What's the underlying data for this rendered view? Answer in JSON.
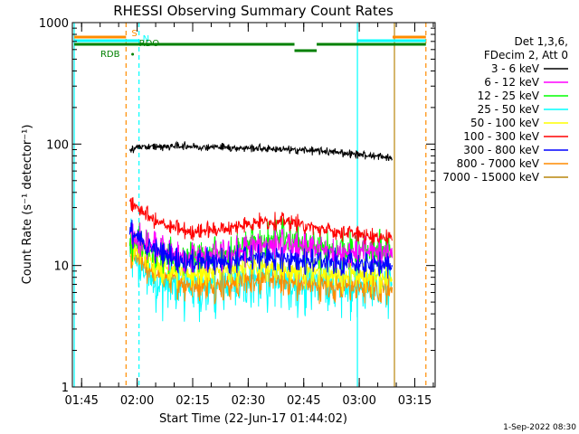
{
  "chart_data": {
    "type": "line",
    "title": "RHESSI Observing Summary Count Rates",
    "xlabel": "Start Time (22-Jun-17 01:44:02)",
    "ylabel": "Count Rate (s⁻¹ detector⁻¹)",
    "y_scale": "log",
    "ylim": [
      1,
      1000
    ],
    "xlim_minutes_after_0144": [
      -1.5,
      96.5
    ],
    "x_ticks": [
      {
        "t": 1,
        "label": "01:45"
      },
      {
        "t": 16,
        "label": "02:00"
      },
      {
        "t": 31,
        "label": "02:15"
      },
      {
        "t": 46,
        "label": "02:30"
      },
      {
        "t": 61,
        "label": "02:45"
      },
      {
        "t": 76,
        "label": "03:00"
      },
      {
        "t": 91,
        "label": "03:15"
      }
    ],
    "y_ticks": [
      {
        "v": 1,
        "label": "1"
      },
      {
        "v": 10,
        "label": "10"
      },
      {
        "v": 100,
        "label": "100"
      },
      {
        "v": 1000,
        "label": "1000"
      }
    ],
    "legend": {
      "position": "right",
      "header": [
        "Det 1,3,6,",
        "FDecim 2, Att 0"
      ],
      "entries": [
        {
          "label": "3 - 6 keV",
          "color": "#000000"
        },
        {
          "label": "6 - 12 keV",
          "color": "#ff00ff"
        },
        {
          "label": "12 - 25 keV",
          "color": "#00ff00"
        },
        {
          "label": "25 - 50 keV",
          "color": "#00ffff"
        },
        {
          "label": "50 - 100 keV",
          "color": "#ffff00"
        },
        {
          "label": "100 - 300 keV",
          "color": "#ff0000"
        },
        {
          "label": "300 - 800 keV",
          "color": "#0000ff"
        },
        {
          "label": "800 - 7000 keV",
          "color": "#ff8c00"
        },
        {
          "label": "7000 - 15000 keV",
          "color": "#b8860b"
        }
      ]
    },
    "series": [
      {
        "name": "3 - 6 keV",
        "color": "#000000",
        "start": 14,
        "end": 85,
        "noise": 0.025,
        "points": [
          [
            14,
            88
          ],
          [
            16,
            95
          ],
          [
            30,
            96
          ],
          [
            50,
            92
          ],
          [
            65,
            88
          ],
          [
            80,
            80
          ],
          [
            85,
            76
          ]
        ]
      },
      {
        "name": "6 - 12 keV",
        "color": "#ff00ff",
        "start": 14,
        "end": 85,
        "noise": 0.1,
        "points": [
          [
            14,
            17
          ],
          [
            18,
            15
          ],
          [
            22,
            13
          ],
          [
            28,
            11.5
          ],
          [
            40,
            12
          ],
          [
            50,
            15
          ],
          [
            60,
            14
          ],
          [
            70,
            13
          ],
          [
            85,
            13
          ]
        ]
      },
      {
        "name": "12 - 25 keV",
        "color": "#00ff00",
        "start": 14,
        "end": 85,
        "noise": 0.12,
        "points": [
          [
            14,
            17
          ],
          [
            18,
            14
          ],
          [
            22,
            12
          ],
          [
            28,
            11.5
          ],
          [
            40,
            12.5
          ],
          [
            48,
            15
          ],
          [
            56,
            17
          ],
          [
            62,
            14
          ],
          [
            70,
            13
          ],
          [
            85,
            13
          ]
        ]
      },
      {
        "name": "25 - 50 keV",
        "color": "#00ffff",
        "start": 14,
        "end": 85,
        "noise": 0.2,
        "points": [
          [
            14,
            14
          ],
          [
            18,
            9
          ],
          [
            22,
            7
          ],
          [
            28,
            7
          ],
          [
            40,
            7
          ],
          [
            50,
            8
          ],
          [
            60,
            7.5
          ],
          [
            70,
            7
          ],
          [
            85,
            7
          ]
        ]
      },
      {
        "name": "50 - 100 keV",
        "color": "#ffff00",
        "start": 14,
        "end": 85,
        "noise": 0.1,
        "points": [
          [
            14,
            15
          ],
          [
            18,
            12
          ],
          [
            22,
            10
          ],
          [
            30,
            8.5
          ],
          [
            40,
            9
          ],
          [
            50,
            10
          ],
          [
            60,
            9
          ],
          [
            70,
            8.5
          ],
          [
            85,
            8
          ]
        ]
      },
      {
        "name": "100 - 300 keV",
        "color": "#ff0000",
        "start": 14,
        "end": 85,
        "noise": 0.05,
        "points": [
          [
            14,
            33
          ],
          [
            18,
            27
          ],
          [
            22,
            22
          ],
          [
            30,
            19
          ],
          [
            40,
            20
          ],
          [
            48,
            23
          ],
          [
            58,
            23
          ],
          [
            65,
            20
          ],
          [
            75,
            18
          ],
          [
            85,
            17
          ]
        ]
      },
      {
        "name": "300 - 800 keV",
        "color": "#0000ff",
        "start": 14,
        "end": 85,
        "noise": 0.08,
        "points": [
          [
            14,
            19
          ],
          [
            18,
            15
          ],
          [
            22,
            13
          ],
          [
            30,
            10.5
          ],
          [
            40,
            11
          ],
          [
            50,
            12
          ],
          [
            60,
            11
          ],
          [
            70,
            10.5
          ],
          [
            85,
            10
          ]
        ]
      },
      {
        "name": "800 - 7000 keV",
        "color": "#ff8c00",
        "start": 14,
        "end": 85,
        "noise": 0.1,
        "points": [
          [
            14,
            13
          ],
          [
            18,
            10
          ],
          [
            22,
            8.5
          ],
          [
            30,
            7
          ],
          [
            40,
            7
          ],
          [
            50,
            8
          ],
          [
            60,
            7
          ],
          [
            70,
            6.8
          ],
          [
            85,
            6.5
          ]
        ]
      }
    ],
    "flag_bars": [
      {
        "label": "S",
        "color": "#ff8c00",
        "segments": [
          [
            -1,
            13
          ],
          [
            85,
            94
          ]
        ],
        "y_level": 0.0
      },
      {
        "label": "N",
        "color": "#00ffff",
        "segments": [
          [
            -1,
            16.5
          ],
          [
            75.5,
            94
          ]
        ],
        "y_level": 0.5
      },
      {
        "label": "RDO",
        "color": "#008000",
        "segments": [
          [
            -1,
            58.5
          ],
          [
            58.5,
            64.5
          ],
          [
            64.5,
            94
          ]
        ],
        "y_level": 1.0
      },
      {
        "label": "RDB",
        "color": "#008000",
        "segments": [],
        "y_level": 2.0
      }
    ],
    "vertical_lines": [
      {
        "t": -1.0,
        "color": "#00ffff",
        "style": "solid"
      },
      {
        "t": 13.0,
        "color": "#ff8c00",
        "style": "dashed"
      },
      {
        "t": 16.5,
        "color": "#00ffff",
        "style": "dashed"
      },
      {
        "t": 75.5,
        "color": "#00ffff",
        "style": "solid"
      },
      {
        "t": 85.5,
        "color": "#b8860b",
        "style": "solid"
      },
      {
        "t": 94.0,
        "color": "#ff8c00",
        "style": "dashed"
      }
    ]
  },
  "footer": {
    "date_stamp": "1-Sep-2022 08:30"
  }
}
